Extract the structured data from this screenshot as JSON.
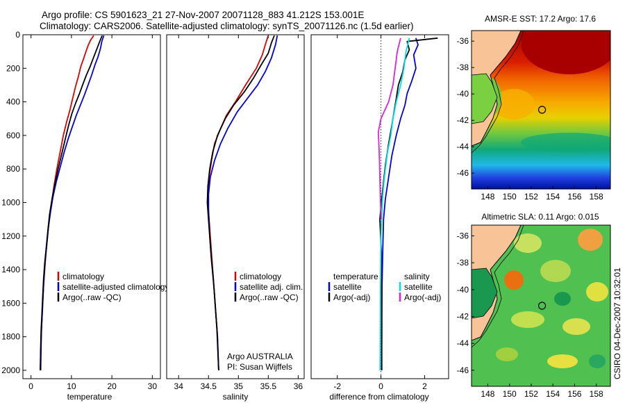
{
  "header": {
    "line1": "Argo profile: CS 5901623_21 27-Nov-2007 20071128_883 41.212S 153.001E",
    "line2": "Climatology: CARS2006. Satellite-adjusted climatology: synTS_20071126.nc (1.5d earlier)"
  },
  "colors": {
    "climatology": "#dd0000",
    "satellite": "#0000dd",
    "argo": "#000000",
    "sat_sal": "#00e0e0",
    "argo_sal": "#dd22dd",
    "land": "#f7c397"
  },
  "credit": {
    "line1": "Argo AUSTRALIA",
    "line2": "PI: Susan Wijffels"
  },
  "footer_stamp": "CSIRO 04-Dec-2007 10:32:01",
  "chart_data": [
    {
      "type": "line",
      "xlabel": "temperature",
      "xlim": [
        -2,
        32
      ],
      "xticks": [
        0,
        10,
        20,
        30
      ],
      "ylim": [
        0,
        2050
      ],
      "yticks": [
        0,
        200,
        400,
        600,
        800,
        1000,
        1200,
        1400,
        1600,
        1800,
        2000
      ],
      "yreversed": true,
      "legend": [
        "climatology",
        "satellite-adjusted climatology",
        "Argo(..raw -QC)"
      ],
      "series": [
        {
          "name": "climatology",
          "color": "climatology",
          "points": [
            [
              15.5,
              5
            ],
            [
              14.8,
              30
            ],
            [
              14.2,
              60
            ],
            [
              13.6,
              100
            ],
            [
              12.9,
              150
            ],
            [
              12.3,
              190
            ],
            [
              11.7,
              250
            ],
            [
              11,
              310
            ],
            [
              10.3,
              380
            ],
            [
              9.6,
              450
            ],
            [
              8.8,
              520
            ],
            [
              8,
              600
            ],
            [
              7.2,
              700
            ],
            [
              6.4,
              800
            ],
            [
              5.7,
              900
            ],
            [
              5.1,
              1000
            ],
            [
              4.5,
              1100
            ],
            [
              4.1,
              1200
            ],
            [
              3.7,
              1300
            ],
            [
              3.4,
              1400
            ],
            [
              3.1,
              1500
            ],
            [
              2.9,
              1600
            ],
            [
              2.7,
              1700
            ],
            [
              2.5,
              1800
            ],
            [
              2.4,
              1900
            ],
            [
              2.3,
              2000
            ]
          ]
        },
        {
          "name": "satellite-adjusted climatology",
          "color": "satellite",
          "points": [
            [
              18,
              5
            ],
            [
              17.5,
              40
            ],
            [
              17.2,
              80
            ],
            [
              16.6,
              130
            ],
            [
              15.8,
              180
            ],
            [
              15,
              240
            ],
            [
              14.1,
              300
            ],
            [
              13.2,
              360
            ],
            [
              12.2,
              420
            ],
            [
              11.2,
              480
            ],
            [
              10.2,
              550
            ],
            [
              9.2,
              620
            ],
            [
              8.2,
              700
            ],
            [
              7.2,
              790
            ],
            [
              6.2,
              880
            ],
            [
              5.4,
              970
            ],
            [
              4.8,
              1060
            ],
            [
              4.3,
              1150
            ],
            [
              3.9,
              1250
            ],
            [
              3.5,
              1350
            ],
            [
              3.2,
              1450
            ],
            [
              3,
              1550
            ],
            [
              2.8,
              1650
            ],
            [
              2.6,
              1750
            ],
            [
              2.5,
              1850
            ],
            [
              2.4,
              2000
            ]
          ]
        },
        {
          "name": "Argo(..raw -QC)",
          "color": "argo",
          "points": [
            [
              17.6,
              5
            ],
            [
              17,
              40
            ],
            [
              16.2,
              90
            ],
            [
              15.4,
              140
            ],
            [
              14.6,
              190
            ],
            [
              13.7,
              240
            ],
            [
              12.9,
              290
            ],
            [
              12,
              350
            ],
            [
              11,
              410
            ],
            [
              10.1,
              470
            ],
            [
              9.3,
              540
            ],
            [
              8.5,
              620
            ],
            [
              7.6,
              710
            ],
            [
              6.7,
              800
            ],
            [
              5.9,
              890
            ],
            [
              5.2,
              980
            ],
            [
              4.6,
              1070
            ],
            [
              4.2,
              1160
            ],
            [
              3.8,
              1260
            ],
            [
              3.4,
              1360
            ],
            [
              3.1,
              1460
            ],
            [
              2.9,
              1560
            ],
            [
              2.7,
              1660
            ],
            [
              2.5,
              1760
            ],
            [
              2.4,
              1860
            ],
            [
              2.3,
              2000
            ]
          ]
        }
      ]
    },
    {
      "type": "line",
      "xlabel": "salinity",
      "xlim": [
        33.8,
        36.1
      ],
      "xticks": [
        34,
        34.5,
        35,
        35.5,
        36
      ],
      "ylim": [
        0,
        2050
      ],
      "yreversed": true,
      "legend": [
        "climatology",
        "satellite adj. clim.",
        "Argo(..raw -QC)"
      ],
      "series": [
        {
          "name": "climatology",
          "color": "climatology",
          "points": [
            [
              35.5,
              5
            ],
            [
              35.45,
              60
            ],
            [
              35.4,
              120
            ],
            [
              35.3,
              200
            ],
            [
              35.12,
              300
            ],
            [
              34.95,
              400
            ],
            [
              34.8,
              480
            ],
            [
              34.7,
              560
            ],
            [
              34.6,
              650
            ],
            [
              34.55,
              750
            ],
            [
              34.51,
              850
            ],
            [
              34.49,
              950
            ],
            [
              34.5,
              1050
            ],
            [
              34.53,
              1200
            ],
            [
              34.56,
              1350
            ],
            [
              34.59,
              1500
            ],
            [
              34.62,
              1650
            ],
            [
              34.65,
              1800
            ],
            [
              34.67,
              2000
            ]
          ]
        },
        {
          "name": "satellite adj. clim.",
          "color": "satellite",
          "points": [
            [
              35.65,
              5
            ],
            [
              35.62,
              60
            ],
            [
              35.55,
              140
            ],
            [
              35.45,
              220
            ],
            [
              35.32,
              300
            ],
            [
              35.15,
              380
            ],
            [
              34.98,
              460
            ],
            [
              34.82,
              560
            ],
            [
              34.7,
              650
            ],
            [
              34.6,
              750
            ],
            [
              34.53,
              850
            ],
            [
              34.5,
              950
            ],
            [
              34.5,
              1050
            ],
            [
              34.52,
              1200
            ],
            [
              34.55,
              1350
            ],
            [
              34.59,
              1500
            ],
            [
              34.62,
              1650
            ],
            [
              34.65,
              1800
            ],
            [
              34.67,
              2000
            ]
          ]
        },
        {
          "name": "Argo(..raw -QC)",
          "color": "argo",
          "points": [
            [
              35.6,
              5
            ],
            [
              35.55,
              50
            ],
            [
              35.5,
              110
            ],
            [
              35.38,
              180
            ],
            [
              35.25,
              260
            ],
            [
              35.1,
              340
            ],
            [
              34.92,
              420
            ],
            [
              34.78,
              500
            ],
            [
              34.65,
              600
            ],
            [
              34.57,
              700
            ],
            [
              34.52,
              800
            ],
            [
              34.49,
              900
            ],
            [
              34.48,
              1000
            ],
            [
              34.51,
              1150
            ],
            [
              34.54,
              1300
            ],
            [
              34.58,
              1450
            ],
            [
              34.61,
              1600
            ],
            [
              34.64,
              1750
            ],
            [
              34.67,
              2000
            ]
          ]
        }
      ]
    },
    {
      "type": "line",
      "xlabel": "difference from climatology",
      "xlim": [
        -3.2,
        3.1
      ],
      "xticks": [
        -2,
        0,
        2
      ],
      "ylim": [
        0,
        2050
      ],
      "yreversed": true,
      "legend_groups": [
        {
          "title": "temperature",
          "entries": [
            "satellite",
            "Argo(-adj)"
          ]
        },
        {
          "title": "salinity",
          "entries": [
            "satellite",
            "Argo(-adj)"
          ]
        }
      ],
      "series": [
        {
          "name": "temperature satellite",
          "color": "satellite",
          "points": [
            [
              1.6,
              20
            ],
            [
              1.7,
              60
            ],
            [
              1.5,
              120
            ],
            [
              1.6,
              200
            ],
            [
              1.4,
              280
            ],
            [
              1.2,
              350
            ],
            [
              1.1,
              420
            ],
            [
              0.9,
              500
            ],
            [
              0.7,
              600
            ],
            [
              0.5,
              720
            ],
            [
              0.35,
              850
            ],
            [
              0.2,
              980
            ],
            [
              0.12,
              1100
            ],
            [
              0.08,
              1300
            ],
            [
              0.05,
              1500
            ],
            [
              0.04,
              1800
            ],
            [
              0.03,
              2000
            ]
          ]
        },
        {
          "name": "temperature Argo(-adj)",
          "color": "argo",
          "points": [
            [
              2.6,
              20
            ],
            [
              1.2,
              40
            ],
            [
              1.3,
              90
            ],
            [
              1.1,
              150
            ],
            [
              1,
              220
            ],
            [
              0.8,
              300
            ],
            [
              0.7,
              380
            ],
            [
              0.6,
              460
            ],
            [
              0.5,
              540
            ],
            [
              0.35,
              650
            ],
            [
              0.2,
              780
            ],
            [
              0.1,
              900
            ],
            [
              0.02,
              1000
            ],
            [
              -0.05,
              1100
            ],
            [
              0.02,
              1300
            ],
            [
              0.03,
              1600
            ],
            [
              0.04,
              2000
            ]
          ]
        },
        {
          "name": "salinity satellite",
          "color": "sat_sal",
          "points": [
            [
              1.3,
              20
            ],
            [
              1.15,
              100
            ],
            [
              1.05,
              200
            ],
            [
              0.9,
              300
            ],
            [
              0.7,
              400
            ],
            [
              0.55,
              500
            ],
            [
              0.45,
              600
            ],
            [
              0.3,
              700
            ],
            [
              0.2,
              800
            ],
            [
              0.12,
              900
            ],
            [
              0.06,
              1000
            ],
            [
              0,
              1200
            ],
            [
              -0.02,
              1500
            ],
            [
              -0.03,
              1800
            ],
            [
              -0.04,
              2000
            ]
          ]
        },
        {
          "name": "salinity Argo(-adj)",
          "color": "argo_sal",
          "points": [
            [
              0.9,
              20
            ],
            [
              0.75,
              100
            ],
            [
              0.65,
              200
            ],
            [
              0.55,
              300
            ],
            [
              0.35,
              400
            ],
            [
              0,
              500
            ],
            [
              -0.12,
              580
            ],
            [
              -0.08,
              700
            ],
            [
              -0.04,
              900
            ],
            [
              0,
              1100
            ]
          ]
        }
      ]
    },
    {
      "type": "heatmap",
      "title": "AMSR-E SST: 17.2 Argo: 17.6",
      "xlim": [
        146.5,
        159.3
      ],
      "ylim": [
        -47.2,
        -35.2
      ],
      "xticks": [
        148,
        150,
        152,
        154,
        156,
        158
      ],
      "yticks": [
        -36,
        -38,
        -40,
        -42,
        -44,
        -46
      ],
      "marker": [
        153.0,
        -41.2
      ]
    },
    {
      "type": "heatmap",
      "title": "Altimetric SLA: 0.11  Argo: 0.015",
      "xlim": [
        146.5,
        159.3
      ],
      "ylim": [
        -47.2,
        -35.2
      ],
      "xticks": [
        148,
        150,
        152,
        154,
        156,
        158
      ],
      "yticks": [
        -36,
        -38,
        -40,
        -42,
        -44,
        -46
      ],
      "marker": [
        153.0,
        -41.2
      ]
    }
  ]
}
